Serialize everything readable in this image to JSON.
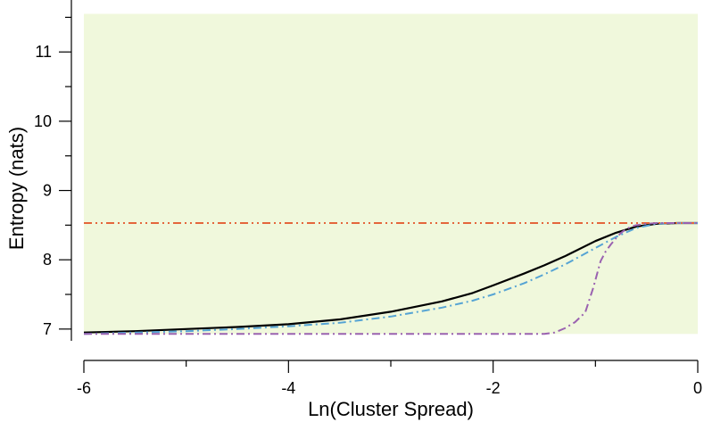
{
  "chart_data": {
    "type": "line",
    "title": "",
    "xlabel": "Ln(Cluster Spread)",
    "ylabel": "Entropy (nats)",
    "xlim": [
      -6,
      0
    ],
    "ylim": [
      6.65,
      11.75
    ],
    "x_ticks": [
      -6,
      -4,
      -2,
      0
    ],
    "y_ticks": [
      7,
      8,
      9,
      10,
      11
    ],
    "x_tick_labels": [
      "-6",
      "-4",
      "-2",
      "0"
    ],
    "y_tick_labels": [
      "7",
      "8",
      "9",
      "10",
      "11"
    ],
    "shaded_band": {
      "y_range": [
        6.93,
        11.55
      ],
      "x_range": [
        -6,
        0
      ],
      "color": "#f0f8dc"
    },
    "grid": false,
    "legend": "none",
    "series": [
      {
        "style": "solid",
        "color": "#000000",
        "x": [
          -6,
          -5.5,
          -5,
          -4.5,
          -4,
          -3.5,
          -3,
          -2.5,
          -2.2,
          -2,
          -1.7,
          -1.5,
          -1.3,
          -1,
          -0.8,
          -0.6,
          -0.4,
          -0.2,
          0
        ],
        "y": [
          6.95,
          6.97,
          7.0,
          7.03,
          7.07,
          7.14,
          7.25,
          7.4,
          7.52,
          7.63,
          7.8,
          7.92,
          8.05,
          8.27,
          8.39,
          8.48,
          8.52,
          8.53,
          8.53
        ]
      },
      {
        "style": "dash-dot",
        "color": "#56a4d4",
        "x": [
          -6,
          -5.5,
          -5,
          -4.5,
          -4,
          -3.5,
          -3,
          -2.5,
          -2.2,
          -2,
          -1.7,
          -1.5,
          -1.3,
          -1,
          -0.8,
          -0.6,
          -0.4,
          -0.2,
          0
        ],
        "y": [
          6.93,
          6.95,
          6.97,
          7.0,
          7.04,
          7.09,
          7.18,
          7.31,
          7.41,
          7.5,
          7.66,
          7.79,
          7.93,
          8.17,
          8.33,
          8.46,
          8.52,
          8.53,
          8.53
        ]
      },
      {
        "style": "dash-dot-dot",
        "color": "#e4663c",
        "x": [
          -6,
          0
        ],
        "y": [
          8.53,
          8.53
        ]
      },
      {
        "style": "dash-dot",
        "color": "#9a62b0",
        "x": [
          -6,
          -5,
          -4,
          -3,
          -2,
          -1.5,
          -1.4,
          -1.3,
          -1.2,
          -1.1,
          -1.02,
          -0.95,
          -0.9,
          -0.85,
          -0.8,
          -0.75,
          -0.7,
          -0.65,
          -0.6,
          -0.5,
          -0.4,
          -0.2,
          0
        ],
        "y": [
          6.93,
          6.93,
          6.93,
          6.93,
          6.93,
          6.93,
          6.95,
          7.01,
          7.1,
          7.24,
          7.6,
          7.98,
          8.12,
          8.22,
          8.31,
          8.39,
          8.44,
          8.48,
          8.5,
          8.52,
          8.53,
          8.53,
          8.53
        ]
      }
    ]
  }
}
